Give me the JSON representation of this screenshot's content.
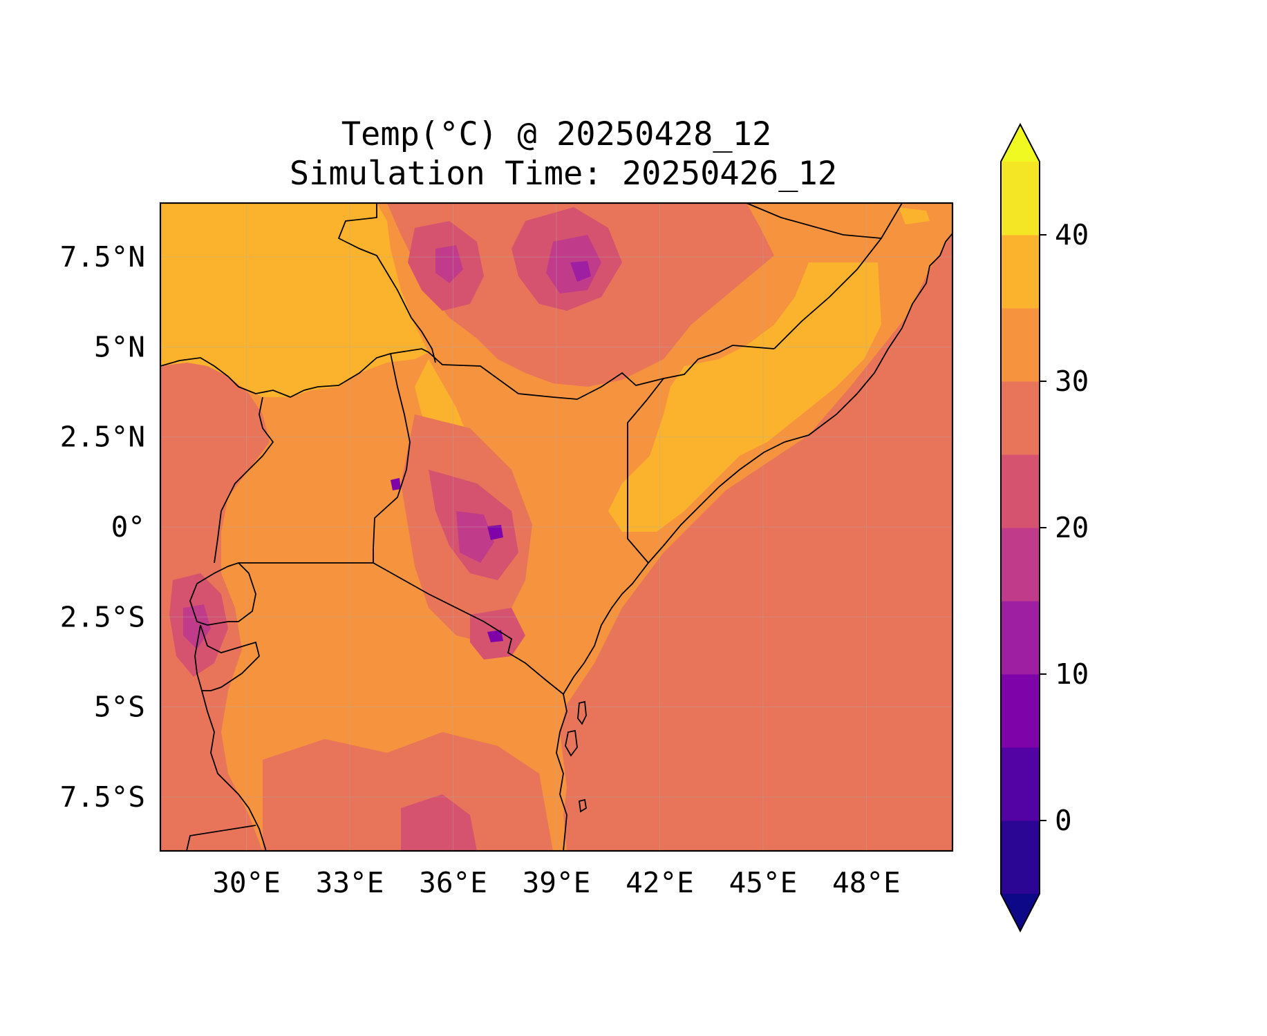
{
  "figure": {
    "title_line1": "Temp(°C) @ 20250428_12",
    "title_line2": "Simulation Time: 20250426_12"
  },
  "map": {
    "projection": "PlateCarree",
    "lon_range": [
      27.5,
      50.5
    ],
    "lat_range": [
      -9.0,
      9.0
    ],
    "x_ticks": [
      {
        "value": 30,
        "label": "30°E"
      },
      {
        "value": 33,
        "label": "33°E"
      },
      {
        "value": 36,
        "label": "36°E"
      },
      {
        "value": 39,
        "label": "39°E"
      },
      {
        "value": 42,
        "label": "42°E"
      },
      {
        "value": 45,
        "label": "45°E"
      },
      {
        "value": 48,
        "label": "48°E"
      }
    ],
    "y_ticks": [
      {
        "value": 7.5,
        "label": "7.5°N"
      },
      {
        "value": 5,
        "label": "5°N"
      },
      {
        "value": 2.5,
        "label": "2.5°N"
      },
      {
        "value": 0,
        "label": "0°"
      },
      {
        "value": -2.5,
        "label": "2.5°S"
      },
      {
        "value": -5,
        "label": "5°S"
      },
      {
        "value": -7.5,
        "label": "7.5°S"
      }
    ],
    "gridlines": true,
    "background_color": "#f5933e",
    "colors": {
      "sea": "#e8745a",
      "land_mid": "#f5933e",
      "land_hot": "#fbb22d",
      "land_cool": "#e8745a",
      "highland": "#d5536f",
      "high_peak": "#c03c8b",
      "peak": "#9e1fa2",
      "summit": "#7e03a8"
    }
  },
  "colorbar": {
    "levels": [
      -5,
      0,
      5,
      10,
      15,
      20,
      25,
      30,
      35,
      40,
      45
    ],
    "colors": [
      "#2b0594",
      "#5302a3",
      "#7e03a8",
      "#9e1fa2",
      "#c03c8b",
      "#d5536f",
      "#e8745a",
      "#f5933e",
      "#fbb22d",
      "#f4e624"
    ],
    "extend_under_color": "#0d0887",
    "extend_over_color": "#f0f921",
    "tick_values": [
      0,
      10,
      20,
      30,
      40
    ],
    "tick_labels": [
      "0",
      "10",
      "20",
      "30",
      "40"
    ],
    "colormap": "plasma"
  }
}
